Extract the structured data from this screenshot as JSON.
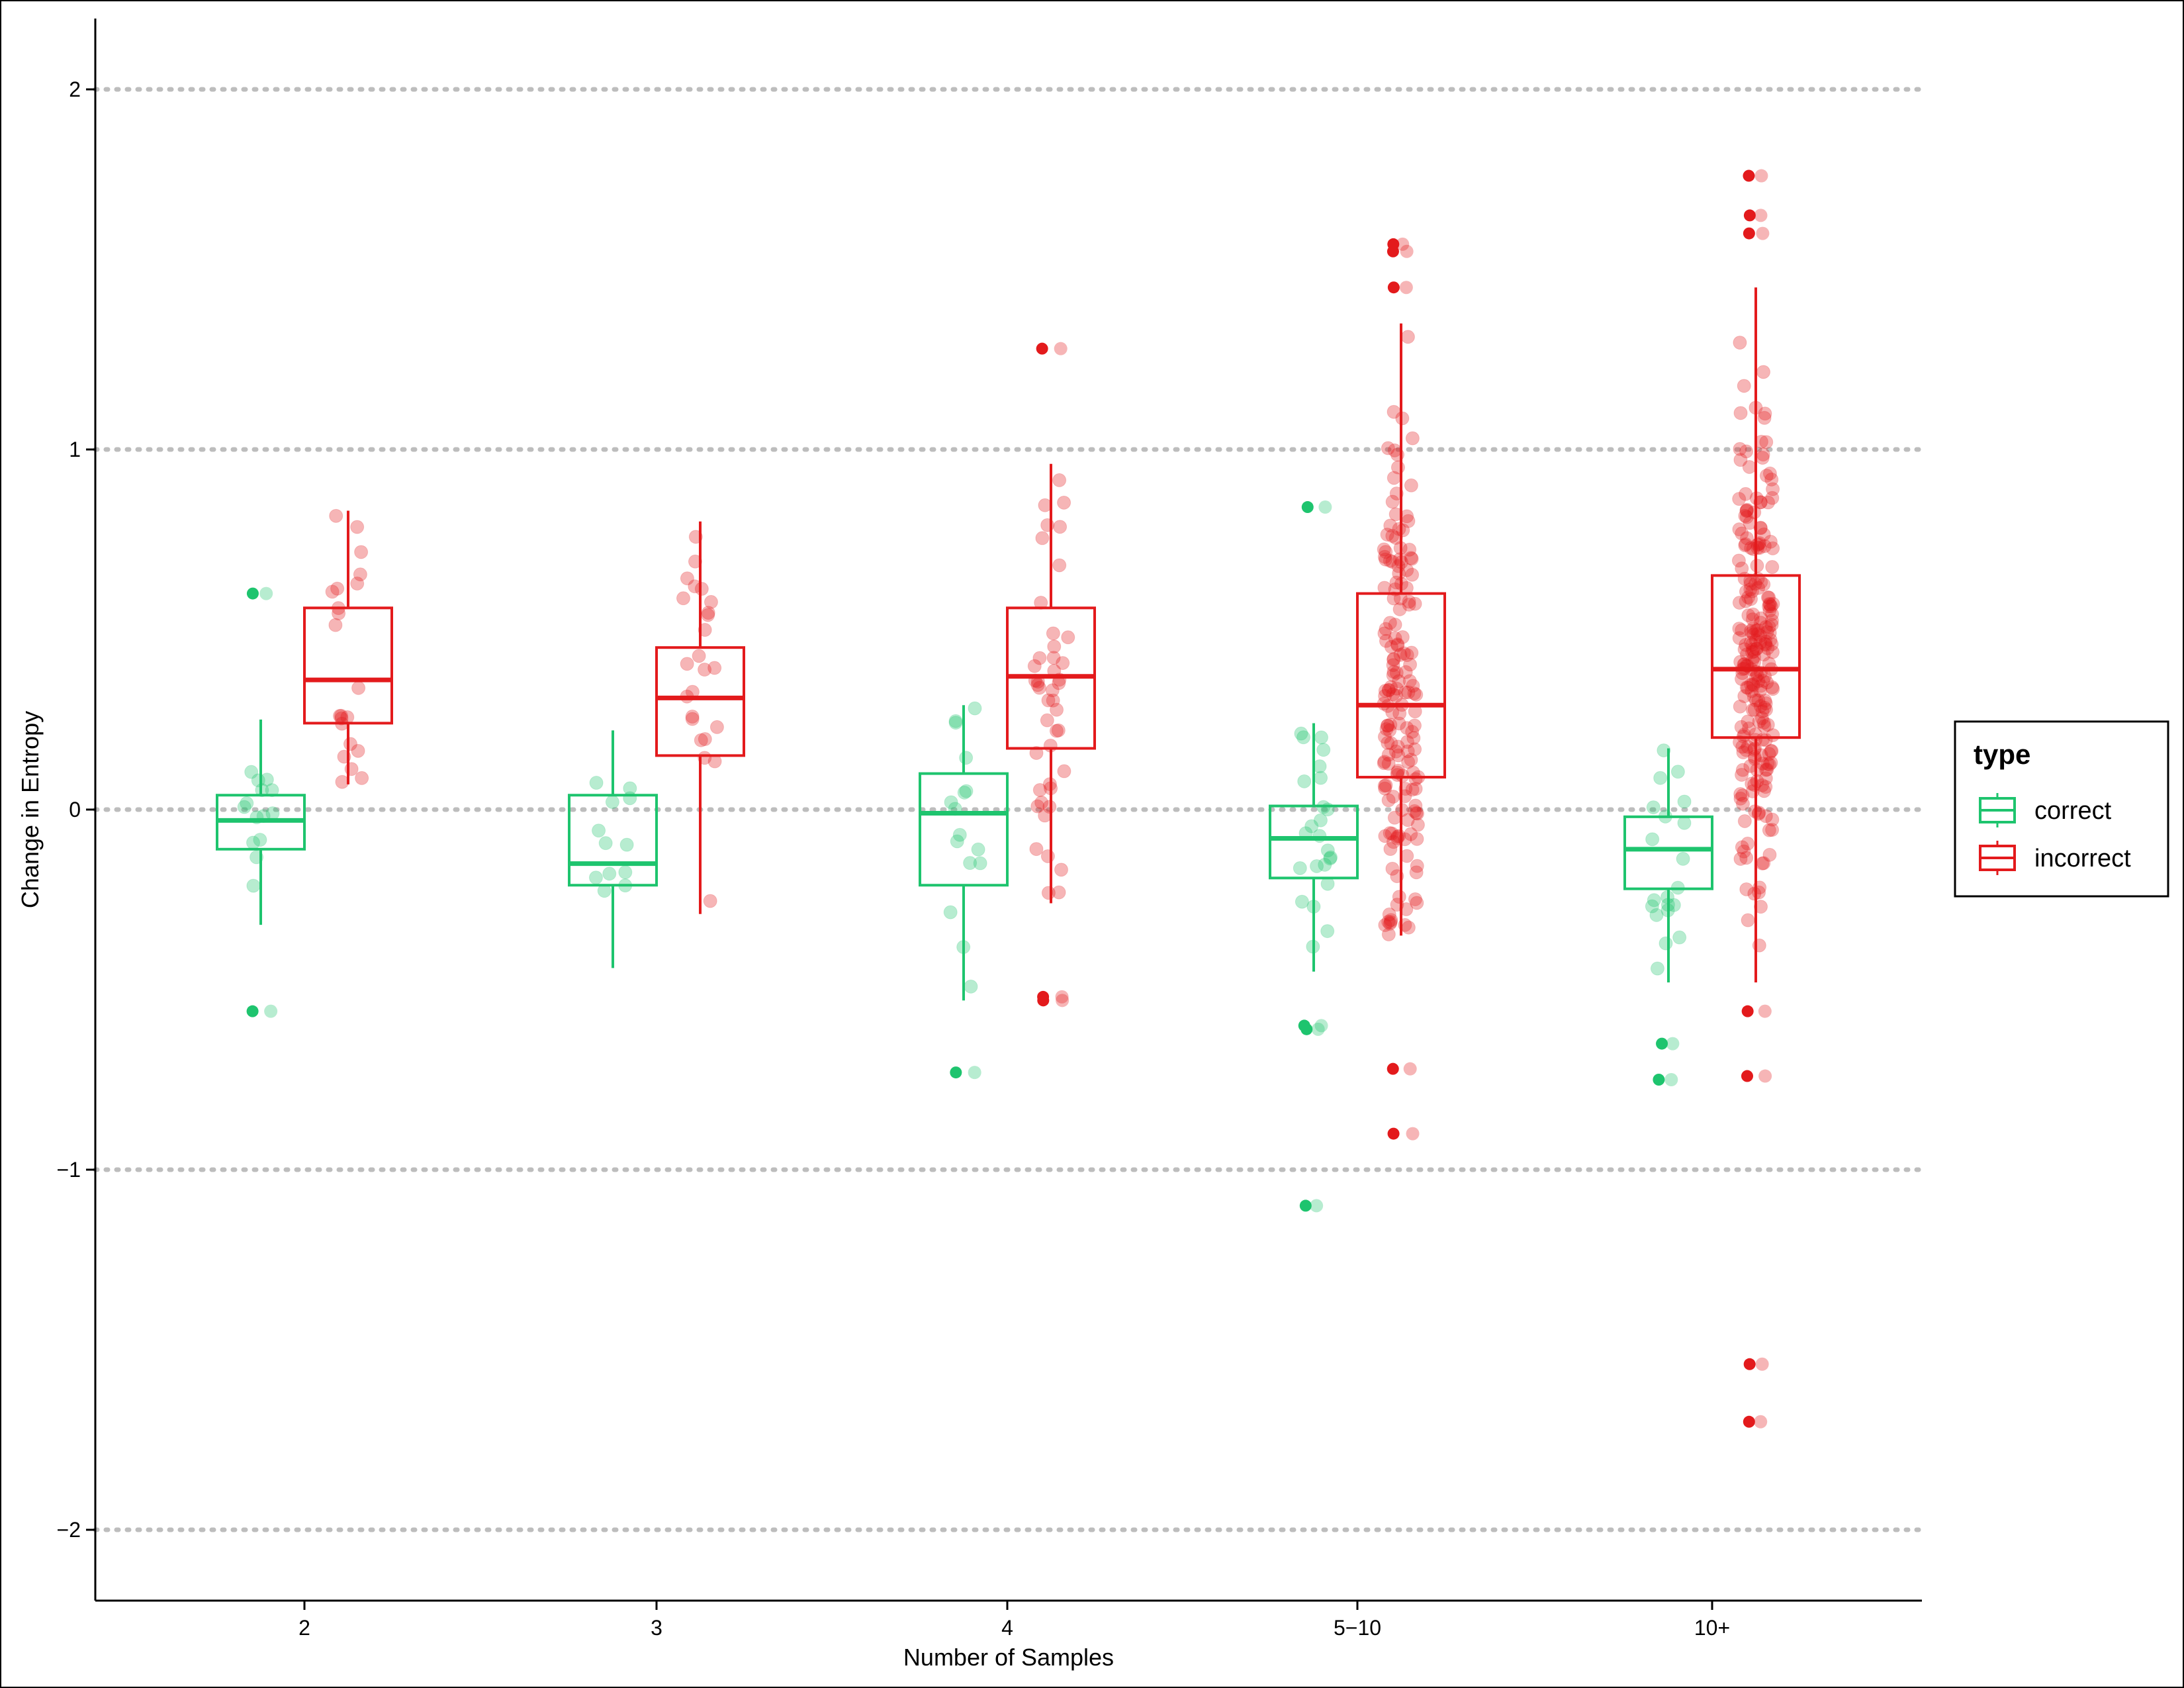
{
  "chart_data": {
    "type": "boxplot",
    "xlabel": "Number of Samples",
    "ylabel": "Change in Entropy",
    "categories": [
      "2",
      "3",
      "4",
      "5−10",
      "10+"
    ],
    "ylim": [
      -2.2,
      2.2
    ],
    "yticks": [
      -2,
      -1,
      0,
      1,
      2
    ],
    "ytick_labels": [
      "−2",
      "−1",
      "0",
      "1",
      "2"
    ],
    "grid": "horizontal dotted at major ticks",
    "legend": {
      "title": "type",
      "position": "right",
      "entries": [
        {
          "label": "correct",
          "color": "#1ec46e"
        },
        {
          "label": "incorrect",
          "color": "#e31a1c"
        }
      ]
    },
    "series": [
      {
        "name": "correct",
        "color": "#1ec46e",
        "boxes": [
          {
            "category": "2",
            "q1": -0.11,
            "median": -0.03,
            "q3": 0.04,
            "whisker_low": -0.32,
            "whisker_high": 0.25
          },
          {
            "category": "3",
            "q1": -0.21,
            "median": -0.15,
            "q3": 0.04,
            "whisker_low": -0.44,
            "whisker_high": 0.22
          },
          {
            "category": "4",
            "q1": -0.21,
            "median": -0.01,
            "q3": 0.1,
            "whisker_low": -0.53,
            "whisker_high": 0.29
          },
          {
            "category": "5−10",
            "q1": -0.19,
            "median": -0.08,
            "q3": 0.01,
            "whisker_low": -0.45,
            "whisker_high": 0.24
          },
          {
            "category": "10+",
            "q1": -0.22,
            "median": -0.11,
            "q3": -0.02,
            "whisker_low": -0.48,
            "whisker_high": 0.17
          }
        ],
        "outliers": [
          {
            "category": "2",
            "values": [
              0.6,
              -0.56
            ]
          },
          {
            "category": "4",
            "values": [
              -0.73
            ]
          },
          {
            "category": "5−10",
            "values": [
              0.84,
              -0.6,
              -0.61,
              -1.1
            ]
          },
          {
            "category": "10+",
            "values": [
              -0.65,
              -0.75
            ]
          }
        ]
      },
      {
        "name": "incorrect",
        "color": "#e31a1c",
        "boxes": [
          {
            "category": "2",
            "q1": 0.24,
            "median": 0.36,
            "q3": 0.56,
            "whisker_low": 0.07,
            "whisker_high": 0.83
          },
          {
            "category": "3",
            "q1": 0.15,
            "median": 0.31,
            "q3": 0.45,
            "whisker_low": -0.29,
            "whisker_high": 0.8
          },
          {
            "category": "4",
            "q1": 0.17,
            "median": 0.37,
            "q3": 0.56,
            "whisker_low": -0.26,
            "whisker_high": 0.96
          },
          {
            "category": "5−10",
            "q1": 0.09,
            "median": 0.29,
            "q3": 0.6,
            "whisker_low": -0.35,
            "whisker_high": 1.35
          },
          {
            "category": "10+",
            "q1": 0.2,
            "median": 0.39,
            "q3": 0.65,
            "whisker_low": -0.48,
            "whisker_high": 1.45
          }
        ],
        "outliers": [
          {
            "category": "4",
            "values": [
              1.28,
              -0.52,
              -0.53
            ]
          },
          {
            "category": "5−10",
            "values": [
              1.57,
              1.55,
              1.45,
              -0.72,
              -0.9
            ]
          },
          {
            "category": "10+",
            "values": [
              1.76,
              1.65,
              1.6,
              -0.56,
              -0.74,
              -1.54,
              -1.7
            ]
          }
        ]
      }
    ]
  }
}
